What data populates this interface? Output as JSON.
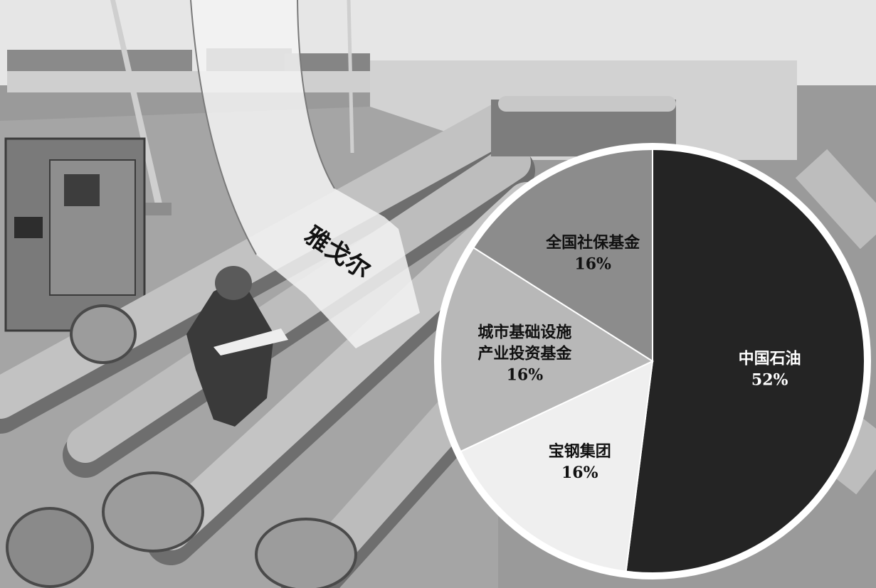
{
  "photo": {
    "description_icon": "pipeline-valve-station-photo",
    "colors": {
      "sky": "#e6e6e6",
      "ground": "#9a9a9a",
      "pipe": "#bdbdbd",
      "pipe_shadow": "#6e6e6e",
      "wall": "#d2d2d2",
      "cabinet": "#7a7a7a"
    }
  },
  "arrow": {
    "label": "雅戈尔"
  },
  "chart_data": {
    "type": "pie",
    "title": "",
    "slices": [
      {
        "label": "中国石油",
        "value": 52,
        "percent_text": "52%",
        "color": "#242424",
        "text_color": "#ffffff"
      },
      {
        "label": "宝钢集团",
        "value": 16,
        "percent_text": "16%",
        "color": "#efefef",
        "text_color": "#111111"
      },
      {
        "label_lines": [
          "城市基础设施",
          "产业投资基金"
        ],
        "value": 16,
        "percent_text": "16%",
        "color": "#b8b8b8",
        "text_color": "#111111"
      },
      {
        "label": "全国社保基金",
        "value": 16,
        "percent_text": "16%",
        "color": "#8c8c8c",
        "text_color": "#111111"
      }
    ]
  }
}
